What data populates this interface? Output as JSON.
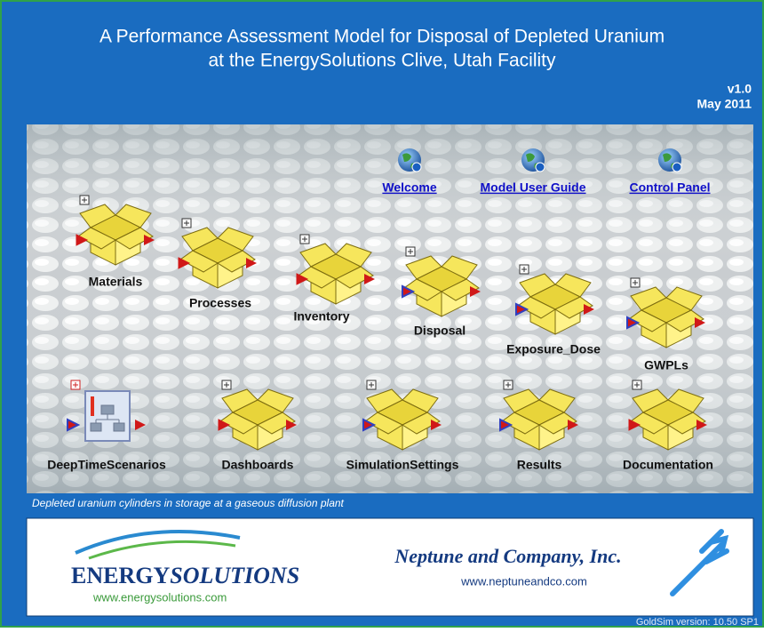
{
  "header": {
    "title_lines": [
      "A Performance Assessment Model for Disposal of Depleted Uranium",
      "at the EnergySolutions Clive, Utah Facility"
    ],
    "version": "v1.0",
    "date": "May 2011"
  },
  "links": [
    "Welcome",
    "Model User Guide",
    "Control Panel"
  ],
  "modules": [
    "Materials",
    "Processes",
    "Inventory",
    "Disposal",
    "Exposure_Dose",
    "GWPLs",
    "DeepTimeScenarios",
    "Dashboards",
    "SimulationSettings",
    "Results",
    "Documentation"
  ],
  "caption": "Depleted uranium cylinders in storage at a gaseous diffusion plant",
  "footer": {
    "energy_logo": [
      "ENERGY",
      "SOLUTIONS"
    ],
    "energy_url": "www.energysolutions.com",
    "neptune_name": "Neptune and Company, Inc.",
    "neptune_url": "www.neptuneandco.com"
  },
  "goldsim_version": "GoldSim version: 10.50 SP1"
}
